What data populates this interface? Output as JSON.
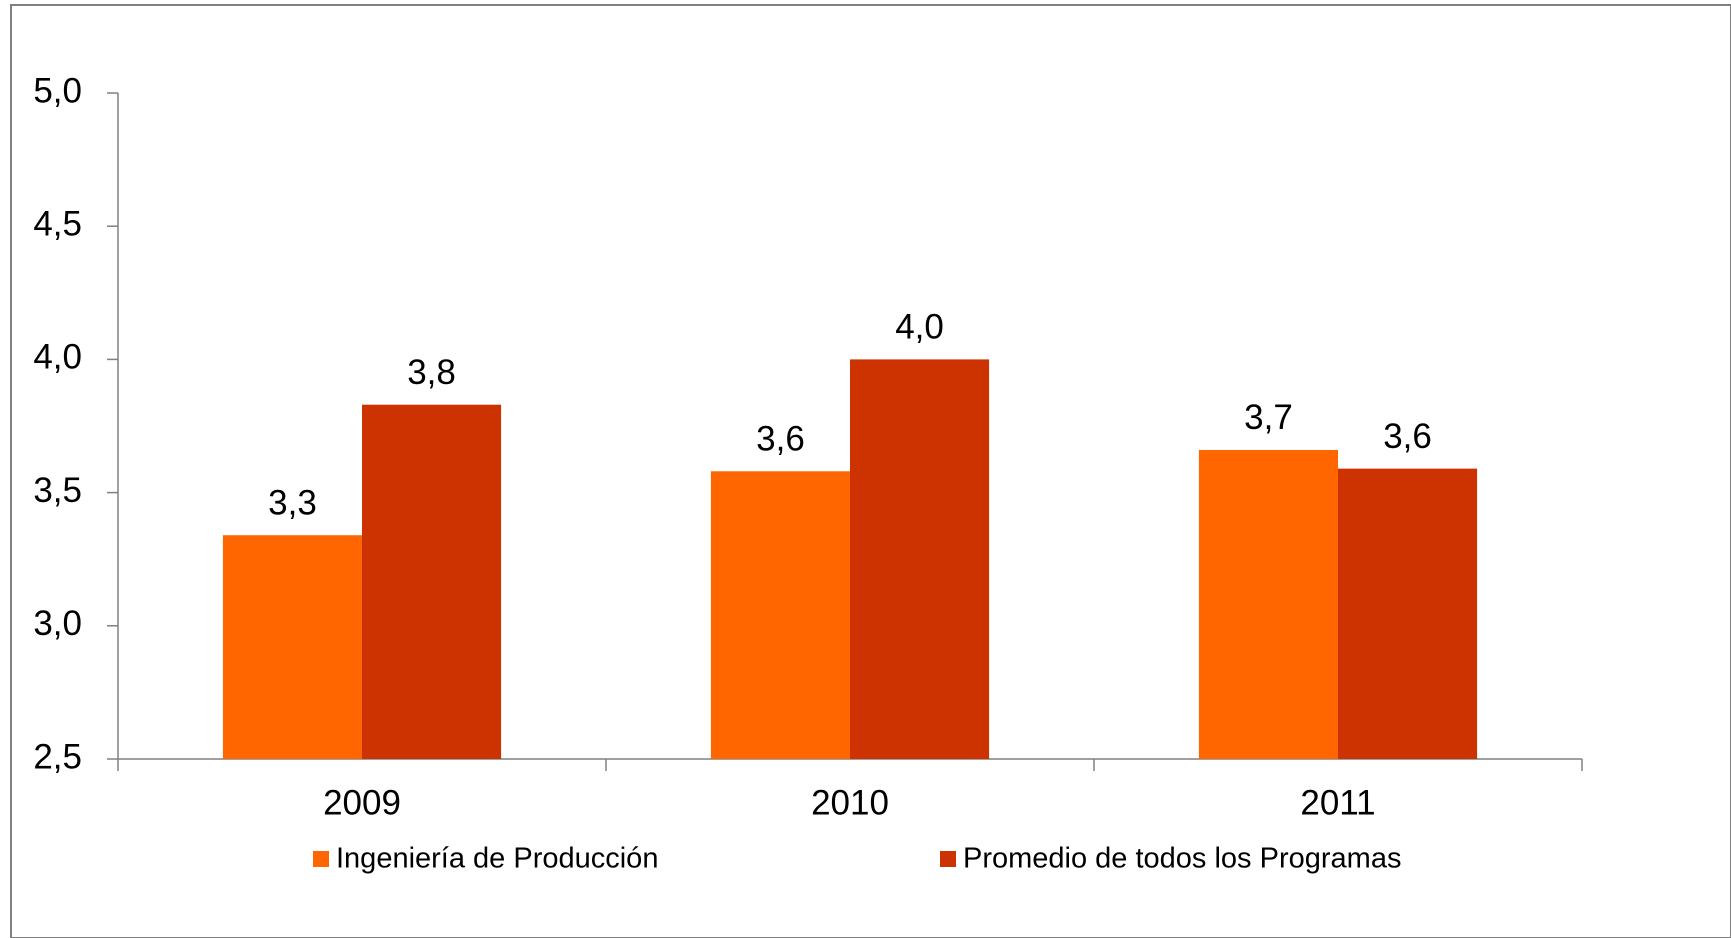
{
  "chart_data": {
    "type": "bar",
    "categories": [
      "2009",
      "2010",
      "2011"
    ],
    "series": [
      {
        "name": "Ingeniería de Producción",
        "color": "#ff6600",
        "values": [
          3.34,
          3.58,
          3.66
        ],
        "value_labels": [
          "3,3",
          "3,6",
          "3,7"
        ]
      },
      {
        "name": "Promedio de todos los Programas",
        "color": "#cc3300",
        "values": [
          3.83,
          4.0,
          3.59
        ],
        "value_labels": [
          "3,8",
          "4,0",
          "3,6"
        ]
      }
    ],
    "ylim": [
      2.5,
      5.0
    ],
    "yticks": [
      {
        "value": 2.5,
        "label": "2,5"
      },
      {
        "value": 3.0,
        "label": "3,0"
      },
      {
        "value": 3.5,
        "label": "3,5"
      },
      {
        "value": 4.0,
        "label": "4,0"
      },
      {
        "value": 4.5,
        "label": "4,5"
      },
      {
        "value": 5.0,
        "label": "5,0"
      }
    ],
    "grid": false,
    "legend": "bottom"
  }
}
